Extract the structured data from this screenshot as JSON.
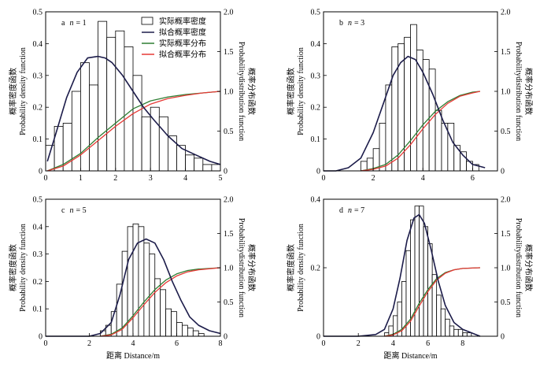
{
  "legend": {
    "labels": [
      "实际概率密度",
      "拟合概率密度",
      "实际概率分布",
      "拟合概率分布"
    ]
  },
  "xlabel_text": "距离 Distance/m",
  "ylabel_left": [
    "概率密度函数",
    "Probability density function"
  ],
  "ylabel_right": [
    "概率分布函数",
    "Probabilitydistribution function"
  ],
  "chart_data": [
    {
      "type": "bar",
      "panel_letter": "a",
      "n_label": "n",
      "n_value": "= 1",
      "bins": [
        0,
        0.25,
        0.5,
        0.75,
        1.0,
        1.25,
        1.5,
        1.75,
        2.0,
        2.25,
        2.5,
        2.75,
        3.0,
        3.25,
        3.5,
        3.75,
        4.0,
        4.25,
        4.5,
        4.75,
        5.0
      ],
      "density": [
        0.08,
        0.14,
        0.15,
        0.25,
        0.34,
        0.27,
        0.47,
        0.42,
        0.44,
        0.39,
        0.3,
        0.17,
        0.2,
        0.17,
        0.11,
        0.08,
        0.05,
        0.04,
        0.02,
        0.02
      ],
      "fit_pdf": {
        "x": [
          0.05,
          0.3,
          0.6,
          0.9,
          1.2,
          1.5,
          1.7,
          1.9,
          2.2,
          2.5,
          2.8,
          3.1,
          3.5,
          3.9,
          4.3,
          4.7,
          5.0
        ],
        "y": [
          0.03,
          0.12,
          0.23,
          0.31,
          0.355,
          0.36,
          0.355,
          0.34,
          0.3,
          0.25,
          0.2,
          0.16,
          0.11,
          0.07,
          0.05,
          0.03,
          0.02
        ]
      },
      "actual_cdf": {
        "x": [
          0.05,
          0.5,
          1.0,
          1.5,
          2.0,
          2.5,
          3.0,
          3.5,
          4.0,
          4.5,
          5.0
        ],
        "y": [
          0.0,
          0.08,
          0.22,
          0.42,
          0.6,
          0.78,
          0.88,
          0.93,
          0.96,
          0.98,
          1.0
        ]
      },
      "fit_cdf": {
        "x": [
          0.05,
          0.5,
          1.0,
          1.5,
          2.0,
          2.5,
          3.0,
          3.5,
          4.0,
          4.5,
          5.0
        ],
        "y": [
          0.0,
          0.06,
          0.2,
          0.38,
          0.56,
          0.72,
          0.84,
          0.91,
          0.95,
          0.98,
          1.0
        ]
      },
      "xlim": [
        0,
        5
      ],
      "ylim": [
        0,
        0.5
      ],
      "y2lim": [
        0,
        2.0
      ],
      "xticks": [
        0,
        1,
        2,
        3,
        4,
        5
      ],
      "yticks": [
        0,
        0.1,
        0.2,
        0.3,
        0.4,
        0.5
      ],
      "y2ticks": [
        0,
        0.5,
        1.0,
        1.5,
        2.0
      ],
      "ytick_labels": [
        "0",
        "0.1",
        "0.2",
        "0.3",
        "0.4",
        "0.5"
      ],
      "y2tick_labels": [
        "0",
        "0.5",
        "1.0",
        "1.5",
        "2.0"
      ],
      "has_legend": true
    },
    {
      "type": "bar",
      "panel_letter": "b",
      "n_label": "n",
      "n_value": "= 3",
      "bins": [
        1.5,
        1.75,
        2.0,
        2.25,
        2.5,
        2.75,
        3.0,
        3.25,
        3.5,
        3.75,
        4.0,
        4.25,
        4.5,
        4.75,
        5.0,
        5.25,
        5.5,
        5.75,
        6.0,
        6.25
      ],
      "density": [
        0.03,
        0.04,
        0.07,
        0.15,
        0.27,
        0.39,
        0.4,
        0.42,
        0.46,
        0.38,
        0.35,
        0.32,
        0.19,
        0.15,
        0.15,
        0.08,
        0.06,
        0.03,
        0.02
      ],
      "fit_pdf": {
        "x": [
          0,
          0.5,
          1.0,
          1.5,
          2.0,
          2.4,
          2.8,
          3.1,
          3.4,
          3.7,
          4.0,
          4.4,
          4.8,
          5.2,
          5.6,
          6.0,
          6.5
        ],
        "y": [
          0.0,
          0.0,
          0.01,
          0.04,
          0.12,
          0.21,
          0.3,
          0.34,
          0.36,
          0.35,
          0.31,
          0.24,
          0.16,
          0.09,
          0.05,
          0.02,
          0.01
        ]
      },
      "actual_cdf": {
        "x": [
          1.5,
          2.0,
          2.5,
          3.0,
          3.5,
          4.0,
          4.5,
          5.0,
          5.5,
          6.0,
          6.3
        ],
        "y": [
          0.0,
          0.03,
          0.08,
          0.2,
          0.38,
          0.58,
          0.75,
          0.87,
          0.95,
          0.99,
          1.0
        ]
      },
      "fit_cdf": {
        "x": [
          1.5,
          2.0,
          2.5,
          3.0,
          3.5,
          4.0,
          4.5,
          5.0,
          5.5,
          6.0,
          6.3
        ],
        "y": [
          0.0,
          0.02,
          0.06,
          0.16,
          0.33,
          0.53,
          0.71,
          0.85,
          0.94,
          0.98,
          1.0
        ]
      },
      "xlim": [
        0,
        7
      ],
      "ylim": [
        0,
        0.5
      ],
      "y2lim": [
        0,
        2.0
      ],
      "xticks": [
        0,
        2,
        4,
        6
      ],
      "yticks": [
        0,
        0.1,
        0.2,
        0.3,
        0.4,
        0.5
      ],
      "y2ticks": [
        0,
        0.5,
        1.0,
        1.5,
        2.0
      ],
      "ytick_labels": [
        "0",
        "0.1",
        "0.2",
        "0.3",
        "0.4",
        "0.5"
      ],
      "y2tick_labels": [
        "0",
        "0.5",
        "1.0",
        "1.5",
        "2.0"
      ],
      "has_legend": false
    },
    {
      "type": "bar",
      "panel_letter": "c",
      "n_label": "n",
      "n_value": "= 5",
      "bins": [
        2.5,
        2.75,
        3.0,
        3.25,
        3.5,
        3.75,
        4.0,
        4.25,
        4.5,
        4.75,
        5.0,
        5.25,
        5.5,
        5.75,
        6.0,
        6.25,
        6.5,
        6.75,
        7.0,
        7.25
      ],
      "density": [
        0.02,
        0.04,
        0.09,
        0.19,
        0.31,
        0.4,
        0.41,
        0.4,
        0.34,
        0.3,
        0.21,
        0.17,
        0.1,
        0.09,
        0.05,
        0.04,
        0.03,
        0.02,
        0.01
      ],
      "fit_pdf": {
        "x": [
          0,
          1.0,
          2.0,
          2.5,
          3.0,
          3.4,
          3.8,
          4.2,
          4.6,
          5.0,
          5.4,
          5.8,
          6.2,
          6.6,
          7.0,
          7.5,
          8.0
        ],
        "y": [
          0.0,
          0.0,
          0.0,
          0.01,
          0.05,
          0.15,
          0.28,
          0.34,
          0.355,
          0.34,
          0.28,
          0.2,
          0.13,
          0.07,
          0.04,
          0.02,
          0.01
        ]
      },
      "actual_cdf": {
        "x": [
          2.5,
          3.0,
          3.5,
          4.0,
          4.5,
          5.0,
          5.5,
          6.0,
          6.5,
          7.0,
          8.0
        ],
        "y": [
          0.0,
          0.03,
          0.12,
          0.3,
          0.5,
          0.68,
          0.82,
          0.91,
          0.96,
          0.98,
          1.0
        ]
      },
      "fit_cdf": {
        "x": [
          2.5,
          3.0,
          3.5,
          4.0,
          4.5,
          5.0,
          5.5,
          6.0,
          6.5,
          7.0,
          8.0
        ],
        "y": [
          0.0,
          0.02,
          0.1,
          0.27,
          0.46,
          0.64,
          0.78,
          0.88,
          0.94,
          0.97,
          1.0
        ]
      },
      "xlim": [
        0,
        8
      ],
      "ylim": [
        0,
        0.5
      ],
      "y2lim": [
        0,
        2.0
      ],
      "xticks": [
        0,
        2,
        4,
        6,
        8
      ],
      "yticks": [
        0,
        0.1,
        0.2,
        0.3,
        0.4,
        0.5
      ],
      "y2ticks": [
        0,
        0.5,
        1.0,
        1.5,
        2.0
      ],
      "ytick_labels": [
        "0",
        "0.1",
        "0.2",
        "0.3",
        "0.4",
        "0.5"
      ],
      "y2tick_labels": [
        "0",
        "0.5",
        "1.0",
        "1.5",
        "2.0"
      ],
      "has_legend": false
    },
    {
      "type": "bar",
      "panel_letter": "d",
      "n_label": "n",
      "n_value": "= 7",
      "bins": [
        3.5,
        3.75,
        4.0,
        4.25,
        4.5,
        4.75,
        5.0,
        5.25,
        5.5,
        5.75,
        6.0,
        6.25,
        6.5,
        6.75,
        7.0,
        7.25,
        7.5,
        7.75,
        8.0,
        8.25,
        8.5
      ],
      "density": [
        0.01,
        0.03,
        0.06,
        0.1,
        0.16,
        0.25,
        0.34,
        0.38,
        0.38,
        0.32,
        0.27,
        0.18,
        0.12,
        0.08,
        0.05,
        0.03,
        0.02,
        0.02,
        0.01,
        0.01
      ],
      "fit_pdf": {
        "x": [
          0,
          1.0,
          2.0,
          3.0,
          3.5,
          4.0,
          4.4,
          4.8,
          5.2,
          5.5,
          5.8,
          6.2,
          6.6,
          7.0,
          7.5,
          8.0,
          9.0
        ],
        "y": [
          0.0,
          0.0,
          0.0,
          0.005,
          0.02,
          0.08,
          0.17,
          0.28,
          0.345,
          0.355,
          0.33,
          0.25,
          0.16,
          0.09,
          0.04,
          0.02,
          0.0
        ]
      },
      "actual_cdf": {
        "x": [
          3.5,
          4.0,
          4.5,
          5.0,
          5.5,
          6.0,
          6.5,
          7.0,
          7.5,
          8.0,
          9.0
        ],
        "y": [
          0.0,
          0.03,
          0.1,
          0.25,
          0.48,
          0.68,
          0.84,
          0.93,
          0.97,
          0.99,
          1.0
        ]
      },
      "fit_cdf": {
        "x": [
          3.5,
          4.0,
          4.5,
          5.0,
          5.5,
          6.0,
          6.5,
          7.0,
          7.5,
          8.0,
          9.0
        ],
        "y": [
          0.0,
          0.02,
          0.08,
          0.22,
          0.44,
          0.65,
          0.82,
          0.92,
          0.97,
          0.99,
          1.0
        ]
      },
      "xlim": [
        0,
        10
      ],
      "ylim": [
        0,
        0.4
      ],
      "y2lim": [
        0,
        2.0
      ],
      "xticks": [
        0,
        2,
        4,
        6,
        8
      ],
      "yticks": [
        0,
        0.2,
        0.4
      ],
      "y2ticks": [
        0,
        0.5,
        1.0,
        1.5,
        2.0
      ],
      "ytick_labels": [
        "0",
        "0.2",
        "0.4"
      ],
      "y2tick_labels": [
        "0",
        "0.5",
        "1.0",
        "1.5",
        "2.0"
      ],
      "has_legend": false
    }
  ],
  "colors": {
    "bar_fill": "#ffffff",
    "bar_stroke": "#000000",
    "fit_pdf": "#1c1c4a",
    "actual_cdf": "#2e7d32",
    "fit_cdf": "#e53935",
    "axis": "#000000"
  }
}
